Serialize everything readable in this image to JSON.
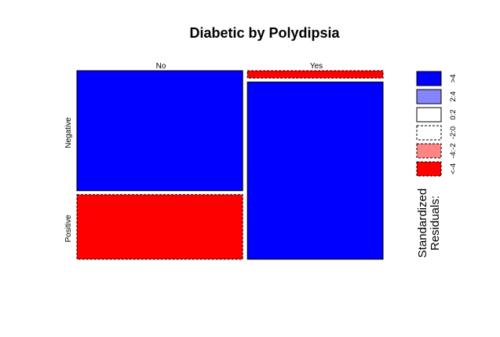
{
  "chart_data": {
    "type": "mosaic",
    "title": "Diabetic by Polydipsia",
    "x_variable_levels": [
      "No",
      "Yes"
    ],
    "y_variable_levels": [
      "Negative",
      "Positive"
    ],
    "cells": [
      {
        "column": "No",
        "row": "Negative",
        "column_share": 0.55,
        "row_share": 0.65,
        "residual_class": ">4",
        "fill": "#0000ff",
        "dashed": false
      },
      {
        "column": "No",
        "row": "Positive",
        "column_share": 0.55,
        "row_share": 0.35,
        "residual_class": "<-4",
        "fill": "#ff0000",
        "dashed": true
      },
      {
        "column": "Yes",
        "row": "Negative",
        "column_share": 0.45,
        "row_share": 0.04,
        "residual_class": "<-4",
        "fill": "#ff0000",
        "dashed": true
      },
      {
        "column": "Yes",
        "row": "Positive",
        "column_share": 0.45,
        "row_share": 0.96,
        "residual_class": ">4",
        "fill": "#0000ff",
        "dashed": false
      }
    ],
    "legend": {
      "title_lines": [
        "Standardized",
        "Residuals:"
      ],
      "placement": "right",
      "items": [
        {
          "label": ">4",
          "fill": "#0000ff",
          "dashed": false
        },
        {
          "label": "2:4",
          "fill": "#8585ff",
          "dashed": false
        },
        {
          "label": "0:2",
          "fill": "#ffffff",
          "dashed": false
        },
        {
          "label": "-2:0",
          "fill": "#ffffff",
          "dashed": true
        },
        {
          "label": "-4:-2",
          "fill": "#ff8585",
          "dashed": true
        },
        {
          "label": "<-4",
          "fill": "#ff0000",
          "dashed": true
        }
      ]
    }
  }
}
